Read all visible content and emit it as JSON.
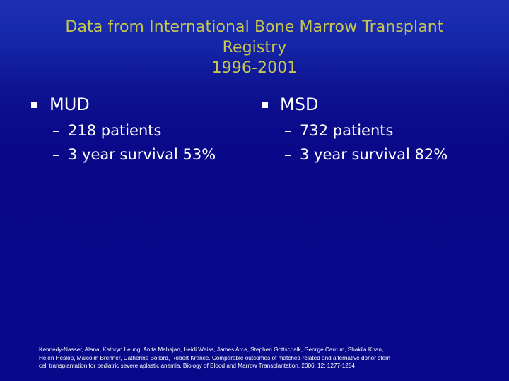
{
  "slide": {
    "title_lines": [
      "Data from International Bone Marrow Transplant",
      "Registry",
      "1996-2001"
    ],
    "left": {
      "heading": "MUD",
      "items": [
        "218 patients",
        "3 year survival 53%"
      ]
    },
    "right": {
      "heading": "MSD",
      "items": [
        "732 patients",
        "3 year survival 82%"
      ]
    },
    "dash": "–",
    "citation_lines": [
      "Kennedy-Nasser, Alana, Kathryn Leung, Anita Mahajan, Heidi Weiss, James Arce, Stephen Gottschalk, George Carrum, Shakila Khan,",
      "Helen Heslop, Malcolm Brenner, Catherine Bollard, Robert Krance. Comparable outcomes of matched-related and alternative donor stem",
      "cell transplantation for pediatric severe aplastic anemia. Biology of Blood and Marrow Transplantation. 2006; 12: 1277-1284"
    ],
    "colors": {
      "background": "#0a0a8c",
      "title": "#c6c64f",
      "text": "#ffffff"
    }
  }
}
